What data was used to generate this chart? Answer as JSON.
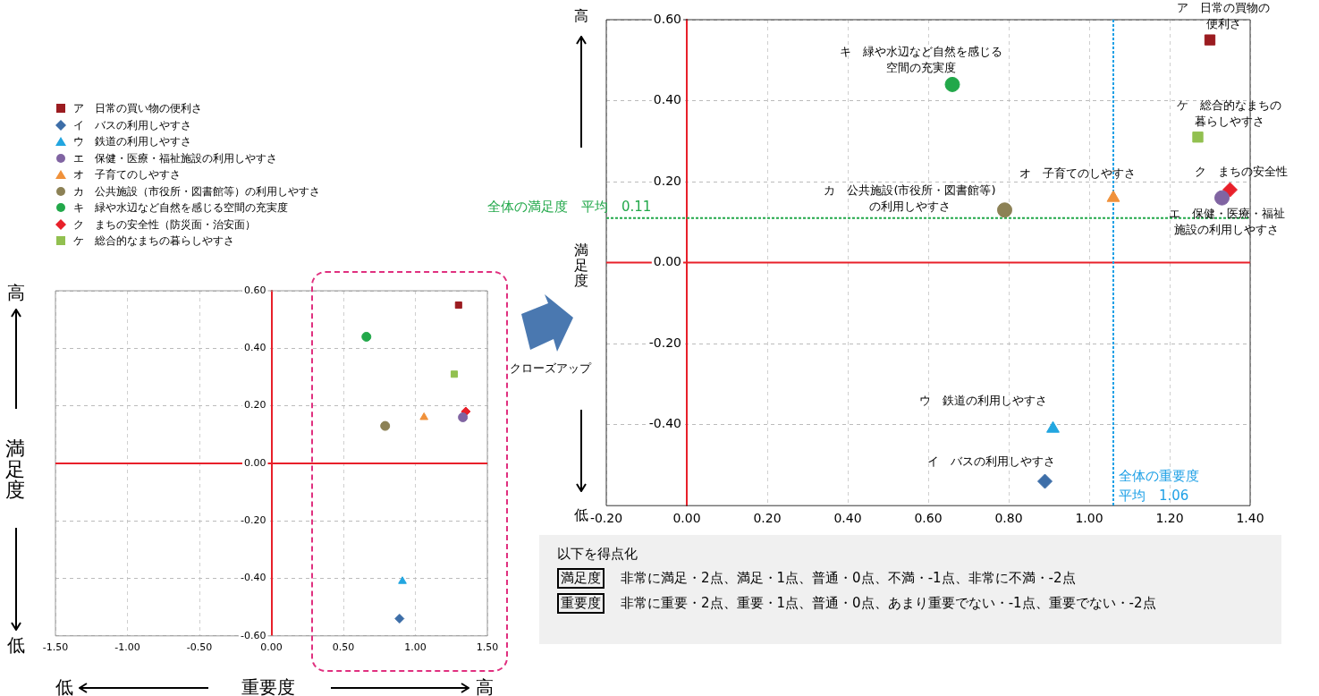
{
  "chart_data": [
    {
      "type": "scatter",
      "xlabel": "重要度",
      "ylabel": "満足度",
      "xlim": [
        -1.5,
        1.5
      ],
      "ylim": [
        -0.6,
        0.6
      ],
      "xticks": [
        {
          "value": -1.5,
          "label": "-1.50"
        },
        {
          "value": -1,
          "label": "-1.00"
        },
        {
          "value": -0.5,
          "label": "-0.50"
        },
        {
          "value": 0,
          "label": "0.00"
        },
        {
          "value": 0.5,
          "label": "0.50"
        },
        {
          "value": 1,
          "label": "1.00"
        },
        {
          "value": 1.5,
          "label": "1.50"
        }
      ],
      "yticks": [
        {
          "value": -0.6,
          "label": "-0.60"
        },
        {
          "value": -0.4,
          "label": "-0.40"
        },
        {
          "value": -0.2,
          "label": "-0.20"
        },
        {
          "value": 0,
          "label": "0.00"
        },
        {
          "value": 0.2,
          "label": "0.20"
        },
        {
          "value": 0.4,
          "label": "0.40"
        },
        {
          "value": 0.6,
          "label": "0.60"
        }
      ],
      "grid": true,
      "legend": "top",
      "ref_lines": [
        {
          "axis": "y",
          "value": 0,
          "color": "#e8202a"
        }
      ],
      "annotations": [
        "高",
        "低",
        "低",
        "高",
        "クローズアップ"
      ],
      "series": [
        {
          "name": "ア　日常の買い物の便利さ",
          "color": "#9b1c20",
          "marker": "square",
          "x": [
            1.3
          ],
          "values": [
            0.55
          ]
        },
        {
          "name": "イ　バスの利用しやすさ",
          "color": "#3d6ea8",
          "marker": "diamond",
          "x": [
            0.89
          ],
          "values": [
            -0.54
          ]
        },
        {
          "name": "ウ　鉄道の利用しやすさ",
          "color": "#22a6e0",
          "marker": "triangle",
          "x": [
            0.91
          ],
          "values": [
            -0.41
          ]
        },
        {
          "name": "エ　保健・医療・福祉施設の利用しやすさ",
          "color": "#8064a2",
          "marker": "circle",
          "x": [
            1.33
          ],
          "values": [
            0.16
          ]
        },
        {
          "name": "オ　子育てのしやすさ",
          "color": "#f0913a",
          "marker": "triangle",
          "x": [
            1.06
          ],
          "values": [
            0.16
          ]
        },
        {
          "name": "カ　公共施設（市役所・図書館等）の利用しやすさ",
          "color": "#8c8155",
          "marker": "circle",
          "x": [
            0.79
          ],
          "values": [
            0.13
          ]
        },
        {
          "name": "キ　緑や水辺など自然を感じる空間の充実度",
          "color": "#22a84a",
          "marker": "circle",
          "x": [
            0.66
          ],
          "values": [
            0.44
          ]
        },
        {
          "name": "ク　まちの安全性（防災面・治安面）",
          "color": "#e8202a",
          "marker": "diamond",
          "x": [
            1.35
          ],
          "values": [
            0.18
          ]
        },
        {
          "name": "ケ　総合的なまちの暮らしやすさ",
          "color": "#92c050",
          "marker": "square",
          "x": [
            1.27
          ],
          "values": [
            0.31
          ]
        }
      ]
    },
    {
      "type": "scatter",
      "ylabel": "満足度",
      "xlim": [
        -0.2,
        1.4
      ],
      "ylim": [
        -0.6,
        0.6
      ],
      "xticks": [
        {
          "value": -0.2,
          "label": "-0.20"
        },
        {
          "value": 0,
          "label": "0.00"
        },
        {
          "value": 0.2,
          "label": "0.20"
        },
        {
          "value": 0.4,
          "label": "0.40"
        },
        {
          "value": 0.6,
          "label": "0.60"
        },
        {
          "value": 0.8,
          "label": "0.80"
        },
        {
          "value": 1,
          "label": "1.00"
        },
        {
          "value": 1.2,
          "label": "1.20"
        },
        {
          "value": 1.4,
          "label": "1.40"
        }
      ],
      "yticks": [
        {
          "value": -0.4,
          "label": "-0.40"
        },
        {
          "value": -0.2,
          "label": "-0.20"
        },
        {
          "value": 0,
          "label": "0.00"
        },
        {
          "value": 0.2,
          "label": "0.20"
        },
        {
          "value": 0.4,
          "label": "0.40"
        },
        {
          "value": 0.6,
          "label": "0.60"
        }
      ],
      "grid": true,
      "ref_lines": [
        {
          "axis": "y",
          "value": 0,
          "color": "#e8202a"
        },
        {
          "axis": "y",
          "value": 0.11,
          "label": "全体の満足度　平均　0.11",
          "color": "#22a84a",
          "line_style": "dotted"
        },
        {
          "axis": "x",
          "value": 1.06,
          "label": "全体の重要度平均　1.06",
          "color": "#1ea0e6",
          "line_style": "dotted"
        }
      ],
      "annotations": [
        "高",
        "低"
      ],
      "series": [
        {
          "name": "ア　日常の買物の便利さ",
          "color": "#9b1c20",
          "marker": "square",
          "x": [
            1.3
          ],
          "values": [
            0.55
          ]
        },
        {
          "name": "イ　バスの利用しやすさ",
          "color": "#3d6ea8",
          "marker": "diamond",
          "x": [
            0.89
          ],
          "values": [
            -0.54
          ]
        },
        {
          "name": "ウ　鉄道の利用しやすさ",
          "color": "#22a6e0",
          "marker": "triangle",
          "x": [
            0.91
          ],
          "values": [
            -0.41
          ]
        },
        {
          "name": "エ　保健・医療・福祉施設の利用しやすさ",
          "color": "#8064a2",
          "marker": "circle",
          "x": [
            1.33
          ],
          "values": [
            0.16
          ]
        },
        {
          "name": "オ　子育てのしやすさ",
          "color": "#f0913a",
          "marker": "triangle",
          "x": [
            1.06
          ],
          "values": [
            0.16
          ]
        },
        {
          "name": "カ　公共施設(市役所・図書館等)の利用しやすさ",
          "color": "#8c8155",
          "marker": "circle",
          "x": [
            0.79
          ],
          "values": [
            0.13
          ]
        },
        {
          "name": "キ　緑や水辺など自然を感じる空間の充実度",
          "color": "#22a84a",
          "marker": "circle",
          "x": [
            0.66
          ],
          "values": [
            0.44
          ]
        },
        {
          "name": "ク　まちの安全性",
          "color": "#e8202a",
          "marker": "diamond",
          "x": [
            1.35
          ],
          "values": [
            0.18
          ]
        },
        {
          "name": "ケ　総合的なまちの暮らしやすさ",
          "color": "#92c050",
          "marker": "square",
          "x": [
            1.27
          ],
          "values": [
            0.31
          ]
        }
      ]
    },
    {
      "type": "other",
      "title": "以下を得点化",
      "annotations": [
        "満足度",
        "非常に満足・2点、満足・1点、普通・0点、不満・-1点、非常に不満・-2点",
        "重要度",
        "非常に重要・2点、重要・1点、普通・0点、あまり重要でない・-1点、重要でない・-2点"
      ]
    }
  ]
}
